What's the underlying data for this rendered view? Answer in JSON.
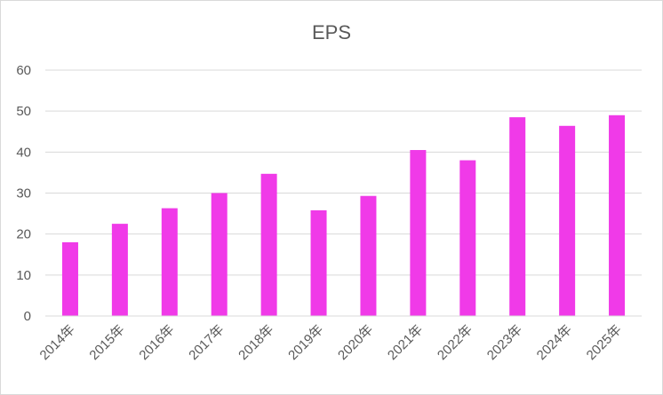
{
  "chart_data": {
    "type": "bar",
    "title": "EPS",
    "xlabel": "",
    "ylabel": "",
    "categories": [
      "2014年",
      "2015年",
      "2016年",
      "2017年",
      "2018年",
      "2019年",
      "2020年",
      "2021年",
      "2022年",
      "2023年",
      "2024年",
      "2025年"
    ],
    "values": [
      18,
      22.5,
      26.3,
      30,
      34.7,
      25.8,
      29.3,
      40.5,
      38,
      48.5,
      46.4,
      49
    ],
    "ylim": [
      0,
      60
    ],
    "yticks": [
      "0",
      "10",
      "20",
      "30",
      "40",
      "50",
      "60"
    ],
    "grid": true,
    "legend": "none",
    "bar_color": "#f03ae8",
    "grid_color": "#d9d9d9"
  }
}
